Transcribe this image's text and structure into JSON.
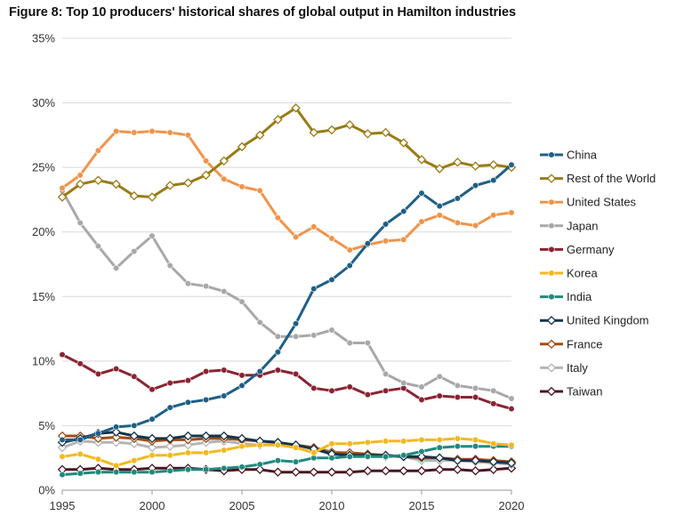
{
  "chart_data": {
    "type": "line",
    "title": "Figure 8: Top 10 producers' historical shares of global output in Hamilton industries",
    "xlabel": "",
    "ylabel": "",
    "x": [
      1995,
      1996,
      1997,
      1998,
      1999,
      2000,
      2001,
      2002,
      2003,
      2004,
      2005,
      2006,
      2007,
      2008,
      2009,
      2010,
      2011,
      2012,
      2013,
      2014,
      2015,
      2016,
      2017,
      2018,
      2019,
      2020
    ],
    "xticks": [
      "1995",
      "2000",
      "2005",
      "2010",
      "2015",
      "2020"
    ],
    "yticks": [
      "0%",
      "5%",
      "10%",
      "15%",
      "20%",
      "25%",
      "30%",
      "35%"
    ],
    "ylim": [
      0,
      35
    ],
    "grid": "horizontal",
    "legend_position": "right",
    "series": [
      {
        "name": "China",
        "color": "#1f5f86",
        "marker": "circle",
        "values": [
          3.9,
          3.9,
          4.4,
          4.9,
          5.0,
          5.5,
          6.4,
          6.8,
          7.0,
          7.3,
          8.1,
          9.2,
          10.7,
          12.9,
          15.6,
          16.3,
          17.4,
          19.1,
          20.6,
          21.6,
          23.0,
          22.0,
          22.6,
          23.6,
          24.0,
          25.2
        ]
      },
      {
        "name": "Rest of the World",
        "color": "#9a7b14",
        "marker": "diamond",
        "values": [
          22.7,
          23.7,
          24.0,
          23.7,
          22.8,
          22.7,
          23.6,
          23.8,
          24.4,
          25.5,
          26.6,
          27.5,
          28.7,
          29.6,
          27.7,
          27.9,
          28.3,
          27.6,
          27.7,
          26.9,
          25.6,
          24.9,
          25.4,
          25.1,
          25.2,
          25.0
        ]
      },
      {
        "name": "United States",
        "color": "#f0944a",
        "marker": "circle",
        "values": [
          23.4,
          24.4,
          26.3,
          27.8,
          27.7,
          27.8,
          27.7,
          27.5,
          25.5,
          24.1,
          23.5,
          23.2,
          21.1,
          19.6,
          20.4,
          19.5,
          18.6,
          19.0,
          19.3,
          19.4,
          20.8,
          21.3,
          20.7,
          20.5,
          21.3,
          21.5
        ]
      },
      {
        "name": "Japan",
        "color": "#a8a8a8",
        "marker": "circle",
        "values": [
          23.2,
          20.7,
          18.9,
          17.2,
          18.5,
          19.7,
          17.4,
          16.0,
          15.8,
          15.4,
          14.6,
          13.0,
          11.9,
          11.9,
          12.0,
          12.4,
          11.4,
          11.4,
          9.0,
          8.3,
          8.0,
          8.8,
          8.1,
          7.9,
          7.7,
          7.1
        ]
      },
      {
        "name": "Germany",
        "color": "#8b2332",
        "marker": "circle",
        "values": [
          10.5,
          9.8,
          9.0,
          9.4,
          8.8,
          7.8,
          8.3,
          8.5,
          9.2,
          9.3,
          8.9,
          8.9,
          9.3,
          9.0,
          7.9,
          7.7,
          8.0,
          7.4,
          7.7,
          7.9,
          7.0,
          7.3,
          7.2,
          7.2,
          6.7,
          6.3
        ]
      },
      {
        "name": "Korea",
        "color": "#f3b81e",
        "marker": "circle",
        "values": [
          2.6,
          2.8,
          2.4,
          1.9,
          2.3,
          2.7,
          2.7,
          2.9,
          2.9,
          3.1,
          3.4,
          3.5,
          3.5,
          3.3,
          2.9,
          3.6,
          3.6,
          3.7,
          3.8,
          3.8,
          3.9,
          3.9,
          4.0,
          3.9,
          3.6,
          3.5
        ]
      },
      {
        "name": "India",
        "color": "#1f8a7c",
        "marker": "circle",
        "values": [
          1.2,
          1.3,
          1.4,
          1.4,
          1.4,
          1.4,
          1.5,
          1.6,
          1.6,
          1.7,
          1.8,
          2.0,
          2.3,
          2.2,
          2.5,
          2.5,
          2.6,
          2.6,
          2.6,
          2.7,
          3.0,
          3.3,
          3.4,
          3.4,
          3.4,
          3.4
        ]
      },
      {
        "name": "United Kingdom",
        "color": "#153349",
        "marker": "diamond",
        "values": [
          3.7,
          4.0,
          4.4,
          4.5,
          4.2,
          4.0,
          4.0,
          4.2,
          4.2,
          4.2,
          4.0,
          3.8,
          3.7,
          3.5,
          3.2,
          2.8,
          2.7,
          2.7,
          2.7,
          2.6,
          2.6,
          2.5,
          2.3,
          2.3,
          2.2,
          2.1
        ]
      },
      {
        "name": "France",
        "color": "#a24c16",
        "marker": "diamond",
        "values": [
          4.2,
          4.2,
          4.0,
          4.1,
          4.0,
          3.8,
          3.9,
          3.9,
          4.0,
          4.0,
          3.9,
          3.8,
          3.7,
          3.5,
          3.3,
          2.9,
          2.9,
          2.8,
          2.7,
          2.6,
          2.5,
          2.5,
          2.4,
          2.4,
          2.3,
          2.2
        ]
      },
      {
        "name": "Italy",
        "color": "#b5b5b5",
        "marker": "diamond",
        "values": [
          3.3,
          3.8,
          3.7,
          3.7,
          3.6,
          3.3,
          3.4,
          3.5,
          3.7,
          3.8,
          3.6,
          3.5,
          3.6,
          3.5,
          3.3,
          3.0,
          2.8,
          2.7,
          2.6,
          2.6,
          2.3,
          2.3,
          2.3,
          2.2,
          2.1,
          2.0
        ]
      },
      {
        "name": "Taiwan",
        "color": "#4a1420",
        "marker": "diamond",
        "values": [
          1.6,
          1.6,
          1.7,
          1.6,
          1.6,
          1.7,
          1.7,
          1.7,
          1.6,
          1.5,
          1.6,
          1.6,
          1.4,
          1.4,
          1.4,
          1.4,
          1.4,
          1.5,
          1.5,
          1.5,
          1.5,
          1.6,
          1.6,
          1.5,
          1.6,
          1.7
        ]
      }
    ]
  }
}
